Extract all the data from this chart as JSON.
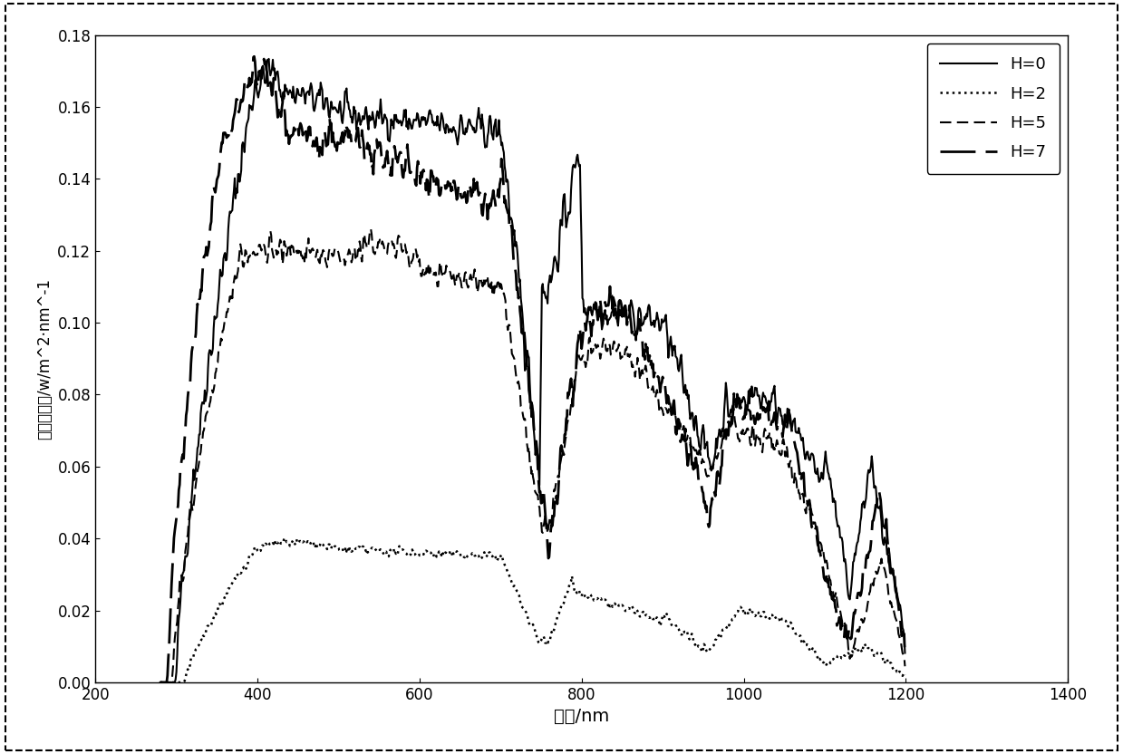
{
  "title": "",
  "xlabel": "波长/nm",
  "ylabel": "辐照差异值/w/m^2·nm^-1",
  "xlim": [
    200,
    1400
  ],
  "ylim": [
    0,
    0.18
  ],
  "xticks": [
    200,
    400,
    600,
    800,
    1000,
    1200,
    1400
  ],
  "yticks": [
    0,
    0.02,
    0.04,
    0.06,
    0.08,
    0.1,
    0.12,
    0.14,
    0.16,
    0.18
  ],
  "legend": [
    "H=0",
    "H=2",
    "H=5",
    "H=7"
  ],
  "background_color": "#ffffff"
}
